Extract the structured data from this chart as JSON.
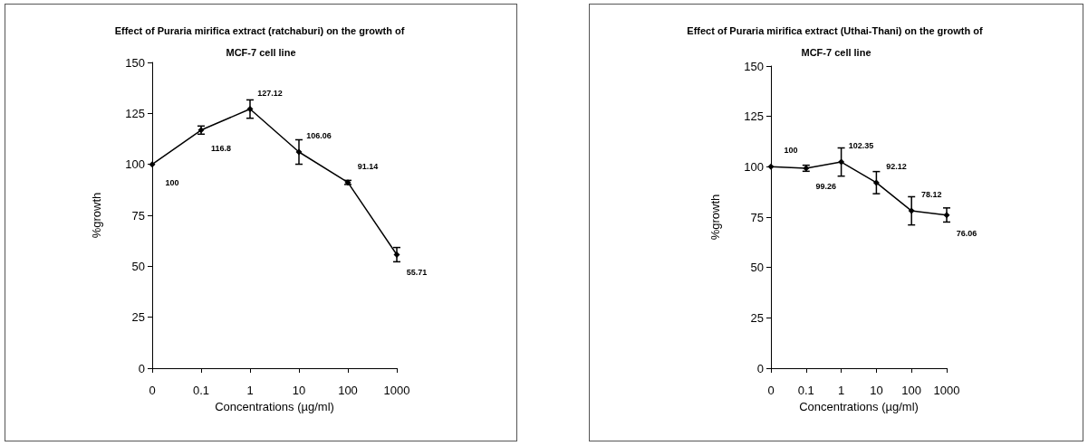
{
  "chart_data": [
    {
      "type": "line",
      "title": "Effect of Puraria mirifica extract (ratchaburi) on the growth of MCF-7 cell line",
      "xlabel": "Concentrations (µg/ml)",
      "ylabel": "%growth",
      "categories": [
        "0",
        "0.1",
        "1",
        "10",
        "100",
        "1000"
      ],
      "series": [
        {
          "color": "#000000",
          "values": [
            100,
            116.8,
            127.12,
            106.06,
            91.14,
            55.71
          ],
          "errors": [
            null,
            2,
            4.5,
            6,
            1,
            3.5
          ]
        }
      ],
      "ylim": [
        0,
        150
      ],
      "yticks": [
        0,
        25,
        50,
        75,
        100,
        125,
        150
      ],
      "grid": false,
      "marker": "diamond",
      "line_style": "solid",
      "data_labels": true
    },
    {
      "type": "line",
      "title": "Effect of Puraria mirifica extract (Uthai-Thani) on the growth of MCF-7 cell line",
      "xlabel": "Concentrations (µg/ml)",
      "ylabel": "%growth",
      "categories": [
        "0",
        "0.1",
        "1",
        "10",
        "100",
        "1000"
      ],
      "series": [
        {
          "color": "#000000",
          "values": [
            100,
            99.26,
            102.35,
            92.12,
            78.12,
            76.06
          ],
          "errors": [
            null,
            1.5,
            7,
            5.5,
            7,
            3.5
          ]
        }
      ],
      "ylim": [
        0,
        150
      ],
      "yticks": [
        0,
        25,
        50,
        75,
        100,
        125,
        150
      ],
      "grid": false,
      "marker": "diamond",
      "line_style": "solid",
      "data_labels": true
    }
  ]
}
